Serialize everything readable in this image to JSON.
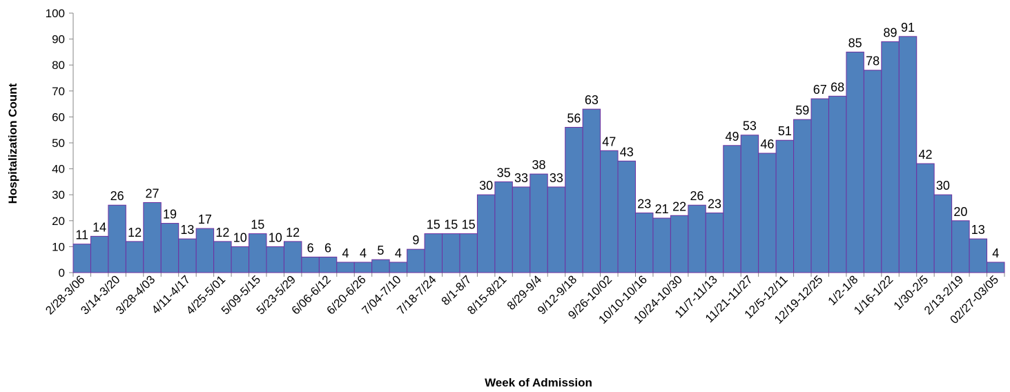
{
  "chart_data": {
    "type": "bar",
    "title": "",
    "xlabel": "Week of Admission",
    "ylabel": "Hospitalization Count",
    "ylim": [
      0,
      100
    ],
    "yticks": [
      0,
      10,
      20,
      30,
      40,
      50,
      60,
      70,
      80,
      90,
      100
    ],
    "grid": false,
    "legend": "none",
    "bar_color": "#4f81bd",
    "bar_edge_color": "#7030a0",
    "x_tick_labels": [
      "2/28-3/06",
      "3/14-3/20",
      "3/28-4/03",
      "4/11-4/17",
      "4/25-5/01",
      "5/09-5/15",
      "5/23-5/29",
      "6/06-6/12",
      "6/20-6/26",
      "7/04-7/10",
      "7/18-7/24",
      "8/1-8/7",
      "8/15-8/21",
      "8/29-9/4",
      "9/12-9/18",
      "9/26-10/02",
      "10/10-10/16",
      "10/24-10/30",
      "11/7-11/13",
      "11/21-11/27",
      "12/5-12/11",
      "12/19-12/25",
      "1/2-1/8",
      "1/16-1/22",
      "1/30-2/5",
      "2/13-2/19",
      "02/27-03/05"
    ],
    "values": [
      11,
      14,
      26,
      12,
      27,
      19,
      13,
      17,
      12,
      10,
      15,
      10,
      12,
      6,
      6,
      4,
      4,
      5,
      4,
      9,
      15,
      15,
      15,
      30,
      35,
      33,
      38,
      33,
      56,
      63,
      47,
      43,
      23,
      21,
      22,
      26,
      23,
      49,
      53,
      46,
      51,
      59,
      67,
      68,
      85,
      78,
      89,
      91,
      42,
      30,
      20,
      13,
      4
    ]
  }
}
